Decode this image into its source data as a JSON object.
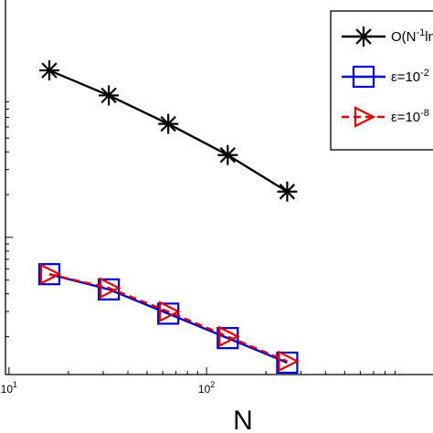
{
  "chart_data": {
    "type": "line",
    "xscale": "log",
    "yscale": "log",
    "xlabel": "N",
    "ylabel": "",
    "title": "",
    "xlim": [
      9.6,
      1400
    ],
    "ylim": [
      0.00108,
      0.47
    ],
    "x_ticks": [
      {
        "value": 10,
        "label_base": "10",
        "label_exp": "1"
      },
      {
        "value": 100,
        "label_base": "10",
        "label_exp": "2"
      }
    ],
    "y_major_ticks": [
      0.01
    ],
    "y_minor_ticks": [
      0.002,
      0.003,
      0.004,
      0.005,
      0.006,
      0.007,
      0.008,
      0.009,
      0.02,
      0.03,
      0.04,
      0.05,
      0.06,
      0.07,
      0.08,
      0.09
    ],
    "x_minor_ticks": [
      20,
      30,
      40,
      50,
      60,
      70,
      80,
      90,
      200,
      300,
      400,
      500,
      600,
      700,
      800,
      900
    ],
    "grid": false,
    "legend_position": "top-right",
    "series": [
      {
        "name": "O(N^-1 ln",
        "legend_base": "O(N",
        "legend_sup": "-1",
        "legend_tail": "ln",
        "color": "#000000",
        "marker": "asterisk",
        "dash": "solid",
        "x": [
          16,
          32,
          64,
          128,
          256
        ],
        "y": [
          0.15,
          0.1,
          0.063,
          0.038,
          0.021
        ]
      },
      {
        "name": "ε=10^-2",
        "legend_base": "ε=10",
        "legend_sup": "-2",
        "legend_tail": "",
        "color": "#0000cc",
        "marker": "square",
        "dash": "solid",
        "x": [
          16,
          32,
          64,
          128,
          256
        ],
        "y": [
          0.0055,
          0.0043,
          0.0029,
          0.00195,
          0.00131
        ]
      },
      {
        "name": "ε=10^-8",
        "legend_base": "ε=10",
        "legend_sup": "-8",
        "legend_tail": "",
        "color": "#dd0000",
        "marker": "triangle-right",
        "dash": "dashed",
        "x": [
          16,
          32,
          64,
          128,
          256
        ],
        "y": [
          0.0055,
          0.0044,
          0.003,
          0.002,
          0.00134
        ]
      }
    ]
  }
}
